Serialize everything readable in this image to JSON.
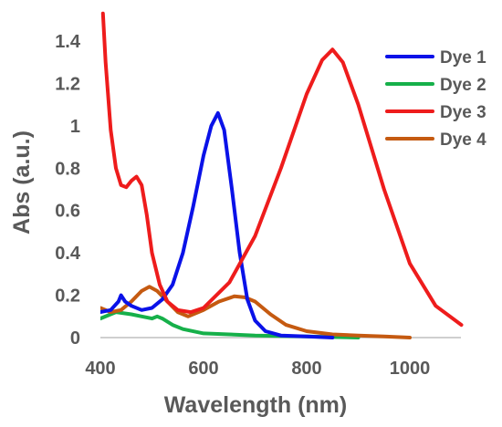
{
  "chart_data": {
    "type": "line",
    "title": "",
    "xlabel": "Wavelength (nm)",
    "ylabel": "Abs (a.u.)",
    "xlim": [
      400,
      1100
    ],
    "ylim": [
      0,
      1.5
    ],
    "x_ticks": [
      "400",
      "600",
      "800",
      "1000"
    ],
    "y_ticks": [
      "0",
      "0.2",
      "0.4",
      "0.6",
      "0.8",
      "1",
      "1.2",
      "1.4"
    ],
    "grid": false,
    "legend_position": "top-right",
    "series": [
      {
        "name": "Dye 1",
        "color": "#0a12e8",
        "x": [
          400,
          420,
          435,
          440,
          448,
          460,
          480,
          500,
          520,
          540,
          560,
          580,
          600,
          615,
          628,
          640,
          655,
          670,
          685,
          700,
          720,
          750,
          800,
          850
        ],
        "y": [
          0.12,
          0.13,
          0.17,
          0.2,
          0.17,
          0.15,
          0.13,
          0.14,
          0.18,
          0.25,
          0.4,
          0.62,
          0.86,
          1.0,
          1.06,
          0.98,
          0.7,
          0.4,
          0.18,
          0.08,
          0.03,
          0.01,
          0.005,
          0.0
        ]
      },
      {
        "name": "Dye 2",
        "color": "#16b04a",
        "x": [
          400,
          430,
          460,
          480,
          500,
          510,
          520,
          540,
          560,
          600,
          650,
          700,
          800,
          900
        ],
        "y": [
          0.09,
          0.12,
          0.11,
          0.1,
          0.09,
          0.1,
          0.09,
          0.06,
          0.04,
          0.02,
          0.015,
          0.01,
          0.005,
          0.0
        ]
      },
      {
        "name": "Dye 3",
        "color": "#ee1c1c",
        "x": [
          405,
          410,
          420,
          430,
          440,
          450,
          460,
          470,
          480,
          490,
          500,
          515,
          530,
          550,
          575,
          600,
          650,
          700,
          750,
          800,
          830,
          850,
          870,
          900,
          950,
          1000,
          1050,
          1100
        ],
        "y": [
          1.53,
          1.3,
          0.98,
          0.8,
          0.72,
          0.71,
          0.74,
          0.76,
          0.72,
          0.58,
          0.4,
          0.25,
          0.17,
          0.13,
          0.12,
          0.14,
          0.26,
          0.48,
          0.8,
          1.15,
          1.31,
          1.36,
          1.3,
          1.1,
          0.7,
          0.35,
          0.15,
          0.06
        ]
      },
      {
        "name": "Dye 4",
        "color": "#c55a11",
        "x": [
          400,
          420,
          440,
          460,
          480,
          495,
          510,
          530,
          550,
          570,
          600,
          630,
          660,
          680,
          700,
          730,
          760,
          800,
          850,
          900,
          950,
          1000
        ],
        "y": [
          0.14,
          0.12,
          0.13,
          0.17,
          0.22,
          0.24,
          0.22,
          0.17,
          0.12,
          0.1,
          0.13,
          0.17,
          0.195,
          0.19,
          0.17,
          0.11,
          0.06,
          0.03,
          0.015,
          0.01,
          0.005,
          0.0
        ]
      }
    ]
  }
}
